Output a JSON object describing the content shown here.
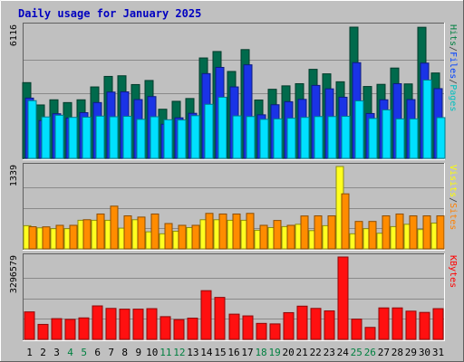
{
  "chart_data": {
    "type": "bar",
    "title": "Daily usage for January 2025",
    "categories": [
      "1",
      "2",
      "3",
      "4",
      "5",
      "6",
      "7",
      "8",
      "9",
      "10",
      "11",
      "12",
      "13",
      "14",
      "15",
      "16",
      "17",
      "18",
      "19",
      "20",
      "21",
      "22",
      "23",
      "24",
      "25",
      "26",
      "27",
      "28",
      "29",
      "30",
      "31"
    ],
    "weekend_days": [
      "4",
      "5",
      "11",
      "12",
      "18",
      "19",
      "25",
      "26"
    ],
    "panels": [
      {
        "key": "hits",
        "ylabel": "Pages / Files / Hits",
        "ylabel_parts": [
          {
            "text": "Pages",
            "color": "#00c0c0"
          },
          {
            "text": " / ",
            "color": "#404040"
          },
          {
            "text": "Files",
            "color": "#0040ff"
          },
          {
            "text": " / ",
            "color": "#404040"
          },
          {
            "text": "Hits",
            "color": "#008040"
          }
        ],
        "max_label": "6116",
        "ymax": 6116,
        "series": [
          {
            "name": "Hits",
            "color": "#006a4c",
            "values": [
              3530,
              2490,
              2730,
              2600,
              2730,
              3330,
              3820,
              3850,
              3440,
              3630,
              2290,
              2660,
              2790,
              4680,
              4980,
              4050,
              5070,
              2720,
              3220,
              3380,
              3480,
              4150,
              3940,
              3570,
              6116,
              3350,
              3450,
              4210,
              3470,
              6110,
              3980
            ]
          },
          {
            "name": "Files",
            "color": "#1a33e6",
            "values": [
              2810,
              1760,
              2080,
              1880,
              2130,
              2600,
              3090,
              3100,
              2740,
              2880,
              1590,
              1890,
              2100,
              3950,
              4240,
              3330,
              4360,
              2030,
              2500,
              2640,
              2750,
              3400,
              3240,
              2850,
              4460,
              2090,
              2730,
              3480,
              2740,
              4440,
              3250
            ]
          },
          {
            "name": "Pages",
            "color": "#00e0ff",
            "values": [
              2690,
              1930,
              2010,
              1910,
              1920,
              1970,
              1940,
              1960,
              1820,
              1940,
              1800,
              1790,
              1990,
              2520,
              2850,
              1980,
              1950,
              1820,
              1840,
              1870,
              1910,
              1950,
              1950,
              1960,
              2680,
              1860,
              2260,
              1840,
              1840,
              3650,
              1900
            ]
          }
        ]
      },
      {
        "key": "visits",
        "ylabel": "Sites / Visits",
        "ylabel_parts": [
          {
            "text": "Sites",
            "color": "#ff8000"
          },
          {
            "text": " / ",
            "color": "#404040"
          },
          {
            "text": "Visits",
            "color": "#ffff00"
          }
        ],
        "max_label": "1339",
        "ymax": 1339,
        "series": [
          {
            "name": "Visits",
            "color": "#ffff20",
            "values": [
              377,
              342,
              329,
              329,
              465,
              465,
              465,
              337,
              474,
              277,
              245,
              287,
              346,
              474,
              474,
              465,
              465,
              303,
              346,
              362,
              400,
              297,
              377,
              1339,
              245,
              329,
              254,
              362,
              400,
              314,
              420
            ]
          },
          {
            "name": "Sites",
            "color": "#ff8c00",
            "values": [
              360,
              358,
              383,
              383,
              474,
              567,
              695,
              537,
              517,
              567,
              412,
              383,
              383,
              577,
              567,
              567,
              577,
              383,
              462,
              383,
              535,
              537,
              537,
              895,
              446,
              446,
              537,
              567,
              537,
              537,
              537
            ]
          }
        ]
      },
      {
        "key": "kbytes",
        "ylabel": "KBytes",
        "ylabel_parts": [
          {
            "text": "KBytes",
            "color": "#ff0000"
          }
        ],
        "max_label": "3296579",
        "ymax": 3296579,
        "series": [
          {
            "name": "KBytes",
            "color": "#ff1010",
            "values": [
              1100000,
              600000,
              830000,
              800000,
              860000,
              1340000,
              1240000,
              1210000,
              1210000,
              1230000,
              910000,
              790000,
              850000,
              1950000,
              1680000,
              1010000,
              940000,
              640000,
              620000,
              1070000,
              1330000,
              1240000,
              1140000,
              3296579,
              810000,
              480000,
              1260000,
              1260000,
              1130000,
              1080000,
              1230000
            ]
          }
        ]
      }
    ]
  }
}
